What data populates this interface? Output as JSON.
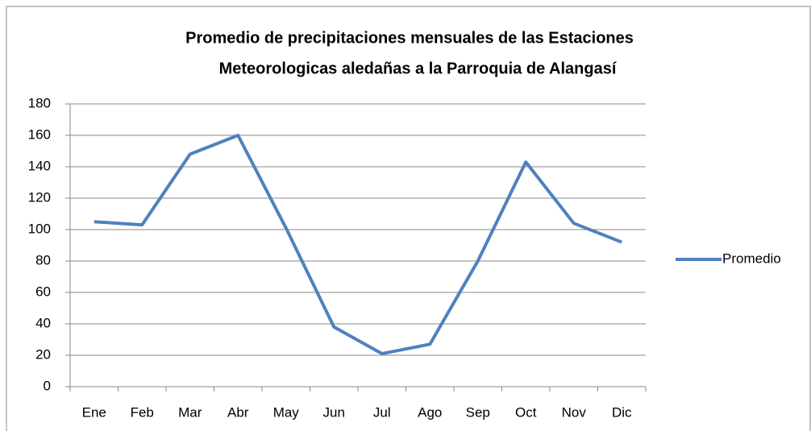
{
  "chart_data": {
    "type": "line",
    "title": "Promedio de precipitaciones mensuales de las Estaciones",
    "subtitle": "Meteorologicas aledañas a la Parroquia de Alangasí",
    "categories": [
      "Ene",
      "Feb",
      "Mar",
      "Abr",
      "May",
      "Jun",
      "Jul",
      "Ago",
      "Sep",
      "Oct",
      "Nov",
      "Dic"
    ],
    "series": [
      {
        "name": "Promedio",
        "color": "#4f81bd",
        "values": [
          105,
          103,
          148,
          160,
          101,
          38,
          21,
          27,
          80,
          143,
          104,
          92
        ]
      }
    ],
    "ylim": [
      0,
      180
    ],
    "yticks": [
      0,
      20,
      40,
      60,
      80,
      100,
      120,
      140,
      160,
      180
    ],
    "grid": true,
    "legend": "right"
  }
}
